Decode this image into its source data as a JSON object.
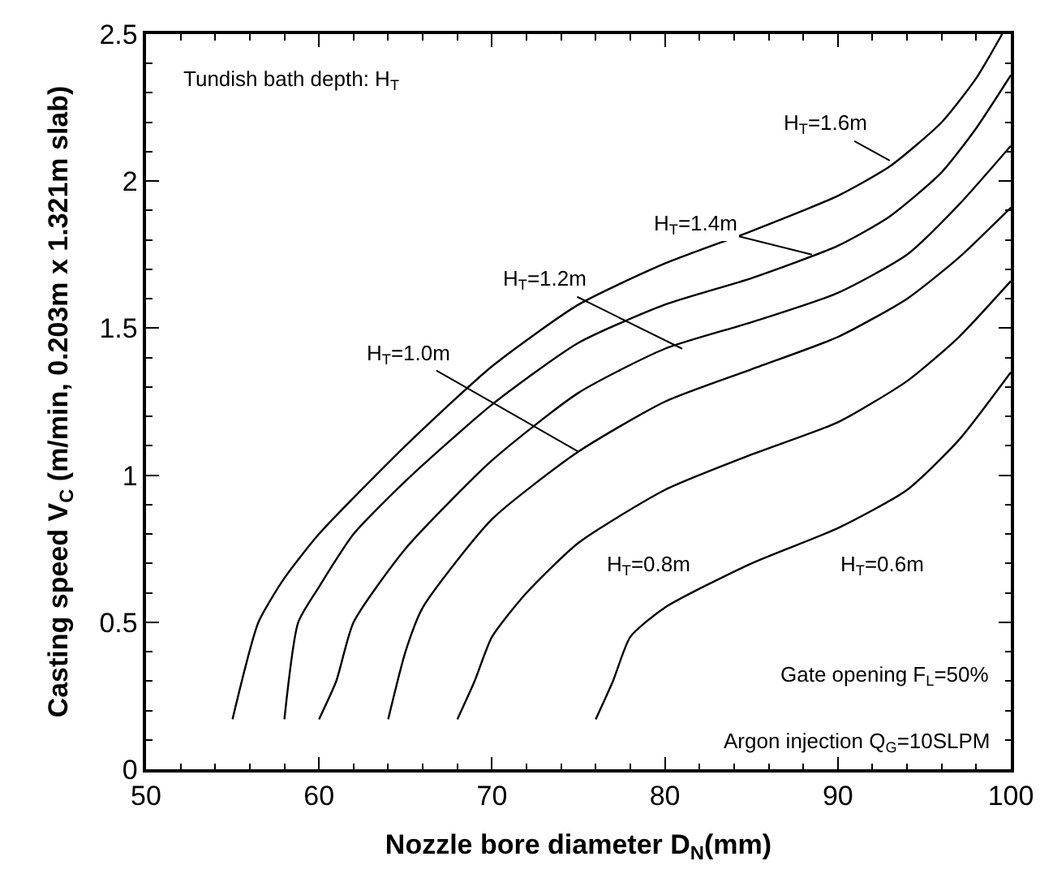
{
  "chart_data": {
    "type": "line",
    "xlabel": "Nozzle bore diameter D$_{N}$(mm)",
    "ylabel": "Casting speed V$_{C}$ (m/min, 0.203m x 1.321m slab)",
    "xlim": [
      50,
      100
    ],
    "xticks": [
      50,
      60,
      70,
      80,
      90,
      100
    ],
    "ylim": [
      0,
      2.5
    ],
    "yticks": [
      0,
      0.5,
      1,
      1.5,
      2,
      2.5
    ],
    "marker": "none",
    "line_style": "solid",
    "series": [
      {
        "color": "#000000",
        "x": [
          55,
          56.5,
          58,
          60,
          65,
          70,
          75,
          80,
          85,
          90,
          93,
          96,
          98,
          99.5
        ],
        "values": [
          0.17,
          0.5,
          0.65,
          0.8,
          1.1,
          1.37,
          1.58,
          1.72,
          1.83,
          1.95,
          2.05,
          2.2,
          2.35,
          2.5
        ]
      },
      {
        "color": "#000000",
        "x": [
          58,
          58.8,
          60,
          62,
          65,
          70,
          75,
          80,
          85,
          90,
          93,
          96,
          98,
          100
        ],
        "values": [
          0.17,
          0.5,
          0.62,
          0.8,
          0.98,
          1.24,
          1.45,
          1.58,
          1.67,
          1.78,
          1.88,
          2.03,
          2.18,
          2.36
        ]
      },
      {
        "color": "#000000",
        "x": [
          60,
          61,
          62,
          65,
          70,
          75,
          80,
          85,
          90,
          94,
          97,
          100
        ],
        "values": [
          0.17,
          0.3,
          0.5,
          0.75,
          1.05,
          1.28,
          1.43,
          1.52,
          1.62,
          1.75,
          1.92,
          2.12
        ]
      },
      {
        "color": "#000000",
        "x": [
          64,
          65,
          66,
          70,
          75,
          80,
          85,
          90,
          94,
          97,
          100
        ],
        "values": [
          0.17,
          0.4,
          0.55,
          0.85,
          1.08,
          1.25,
          1.36,
          1.47,
          1.6,
          1.74,
          1.91
        ]
      },
      {
        "color": "#000000",
        "x": [
          68,
          69,
          70,
          72,
          75,
          80,
          85,
          90,
          94,
          97,
          100
        ],
        "values": [
          0.17,
          0.3,
          0.45,
          0.6,
          0.77,
          0.95,
          1.07,
          1.18,
          1.32,
          1.47,
          1.66
        ]
      },
      {
        "color": "#000000",
        "x": [
          76,
          77,
          78,
          80,
          85,
          90,
          94,
          97,
          100
        ],
        "values": [
          0.17,
          0.3,
          0.45,
          0.55,
          0.7,
          0.82,
          0.95,
          1.12,
          1.35
        ]
      }
    ],
    "annotations": [
      {
        "text": "H$_{T}$=1.6m",
        "x": 93,
        "y": 2.07
      },
      {
        "text": "H$_{T}$=1.4m",
        "x": 88.5,
        "y": 1.75
      },
      {
        "text": "H$_{T}$=1.2m",
        "x": 81,
        "y": 1.43
      },
      {
        "text": "H$_{T}$=1.0m",
        "x": 75,
        "y": 1.08
      },
      "H$_{T}$=0.8m",
      "H$_{T}$=0.6m",
      "Tundish bath depth: H$_{T}$",
      "Gate opening F$_{L}$=50%",
      "Argon injection Q$_{G}$=10SLPM"
    ]
  }
}
